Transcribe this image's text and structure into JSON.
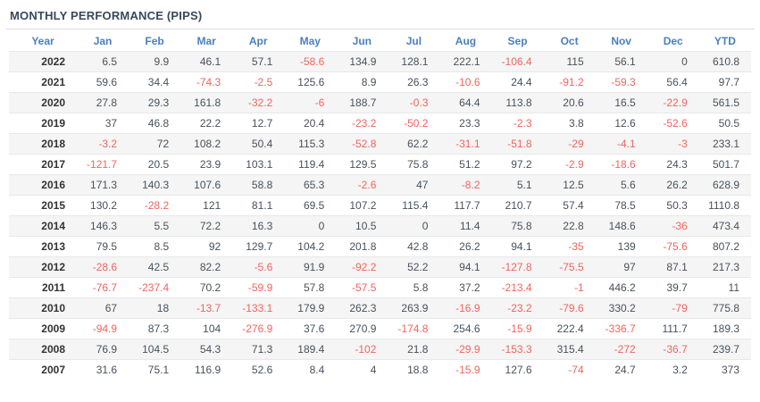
{
  "title": "MONTHLY PERFORMANCE (PIPS)",
  "colors": {
    "title_text": "#36495c",
    "header_text": "#4a7fc0",
    "positive_value": "#47515c",
    "negative_value": "#f2645e",
    "year_text": "#333333",
    "row_stripe": "#f5f5f5",
    "row_border": "#e8e8e8",
    "divider": "#dcdcdc"
  },
  "chart_data": {
    "type": "table",
    "title": "MONTHLY PERFORMANCE (PIPS)",
    "value_unit": "pips",
    "layout": {
      "striped_rows": true,
      "negative_values_red": true,
      "first_column": "Year"
    },
    "columns": [
      "Year",
      "Jan",
      "Feb",
      "Mar",
      "Apr",
      "May",
      "Jun",
      "Jul",
      "Aug",
      "Sep",
      "Oct",
      "Nov",
      "Dec",
      "YTD"
    ],
    "rows": [
      {
        "year": "2022",
        "values": [
          "6.5",
          "9.9",
          "46.1",
          "57.1",
          "-58.6",
          "134.9",
          "128.1",
          "222.1",
          "-106.4",
          "115",
          "56.1",
          "0",
          "610.8"
        ]
      },
      {
        "year": "2021",
        "values": [
          "59.6",
          "34.4",
          "-74.3",
          "-2.5",
          "125.6",
          "8.9",
          "26.3",
          "-10.6",
          "24.4",
          "-91.2",
          "-59.3",
          "56.4",
          "97.7"
        ]
      },
      {
        "year": "2020",
        "values": [
          "27.8",
          "29.3",
          "161.8",
          "-32.2",
          "-6",
          "188.7",
          "-0.3",
          "64.4",
          "113.8",
          "20.6",
          "16.5",
          "-22.9",
          "561.5"
        ]
      },
      {
        "year": "2019",
        "values": [
          "37",
          "46.8",
          "22.2",
          "12.7",
          "20.4",
          "-23.2",
          "-50.2",
          "23.3",
          "-2.3",
          "3.8",
          "12.6",
          "-52.6",
          "50.5"
        ]
      },
      {
        "year": "2018",
        "values": [
          "-3.2",
          "72",
          "108.2",
          "50.4",
          "115.3",
          "-52.8",
          "62.2",
          "-31.1",
          "-51.8",
          "-29",
          "-4.1",
          "-3",
          "233.1"
        ]
      },
      {
        "year": "2017",
        "values": [
          "-121.7",
          "20.5",
          "23.9",
          "103.1",
          "119.4",
          "129.5",
          "75.8",
          "51.2",
          "97.2",
          "-2.9",
          "-18.6",
          "24.3",
          "501.7"
        ]
      },
      {
        "year": "2016",
        "values": [
          "171.3",
          "140.3",
          "107.6",
          "58.8",
          "65.3",
          "-2.6",
          "47",
          "-8.2",
          "5.1",
          "12.5",
          "5.6",
          "26.2",
          "628.9"
        ]
      },
      {
        "year": "2015",
        "values": [
          "130.2",
          "-28.2",
          "121",
          "81.1",
          "69.5",
          "107.2",
          "115.4",
          "117.7",
          "210.7",
          "57.4",
          "78.5",
          "50.3",
          "1110.8"
        ]
      },
      {
        "year": "2014",
        "values": [
          "146.3",
          "5.5",
          "72.2",
          "16.3",
          "0",
          "10.5",
          "0",
          "11.4",
          "75.8",
          "22.8",
          "148.6",
          "-36",
          "473.4"
        ]
      },
      {
        "year": "2013",
        "values": [
          "79.5",
          "8.5",
          "92",
          "129.7",
          "104.2",
          "201.8",
          "42.8",
          "26.2",
          "94.1",
          "-35",
          "139",
          "-75.6",
          "807.2"
        ]
      },
      {
        "year": "2012",
        "values": [
          "-28.6",
          "42.5",
          "82.2",
          "-5.6",
          "91.9",
          "-92.2",
          "52.2",
          "94.1",
          "-127.8",
          "-75.5",
          "97",
          "87.1",
          "217.3"
        ]
      },
      {
        "year": "2011",
        "values": [
          "-76.7",
          "-237.4",
          "70.2",
          "-59.9",
          "57.8",
          "-57.5",
          "5.8",
          "37.2",
          "-213.4",
          "-1",
          "446.2",
          "39.7",
          "11"
        ]
      },
      {
        "year": "2010",
        "values": [
          "67",
          "18",
          "-13.7",
          "-133.1",
          "179.9",
          "262.3",
          "263.9",
          "-16.9",
          "-23.2",
          "-79.6",
          "330.2",
          "-79",
          "775.8"
        ]
      },
      {
        "year": "2009",
        "values": [
          "-94.9",
          "87.3",
          "104",
          "-276.9",
          "37.6",
          "270.9",
          "-174.8",
          "254.6",
          "-15.9",
          "222.4",
          "-336.7",
          "111.7",
          "189.3"
        ]
      },
      {
        "year": "2008",
        "values": [
          "76.9",
          "104.5",
          "54.3",
          "71.3",
          "189.4",
          "-102",
          "21.8",
          "-29.9",
          "-153.3",
          "315.4",
          "-272",
          "-36.7",
          "239.7"
        ]
      },
      {
        "year": "2007",
        "values": [
          "31.6",
          "75.1",
          "116.9",
          "52.6",
          "8.4",
          "4",
          "18.8",
          "-15.9",
          "127.6",
          "-74",
          "24.7",
          "3.2",
          "373"
        ]
      }
    ]
  }
}
